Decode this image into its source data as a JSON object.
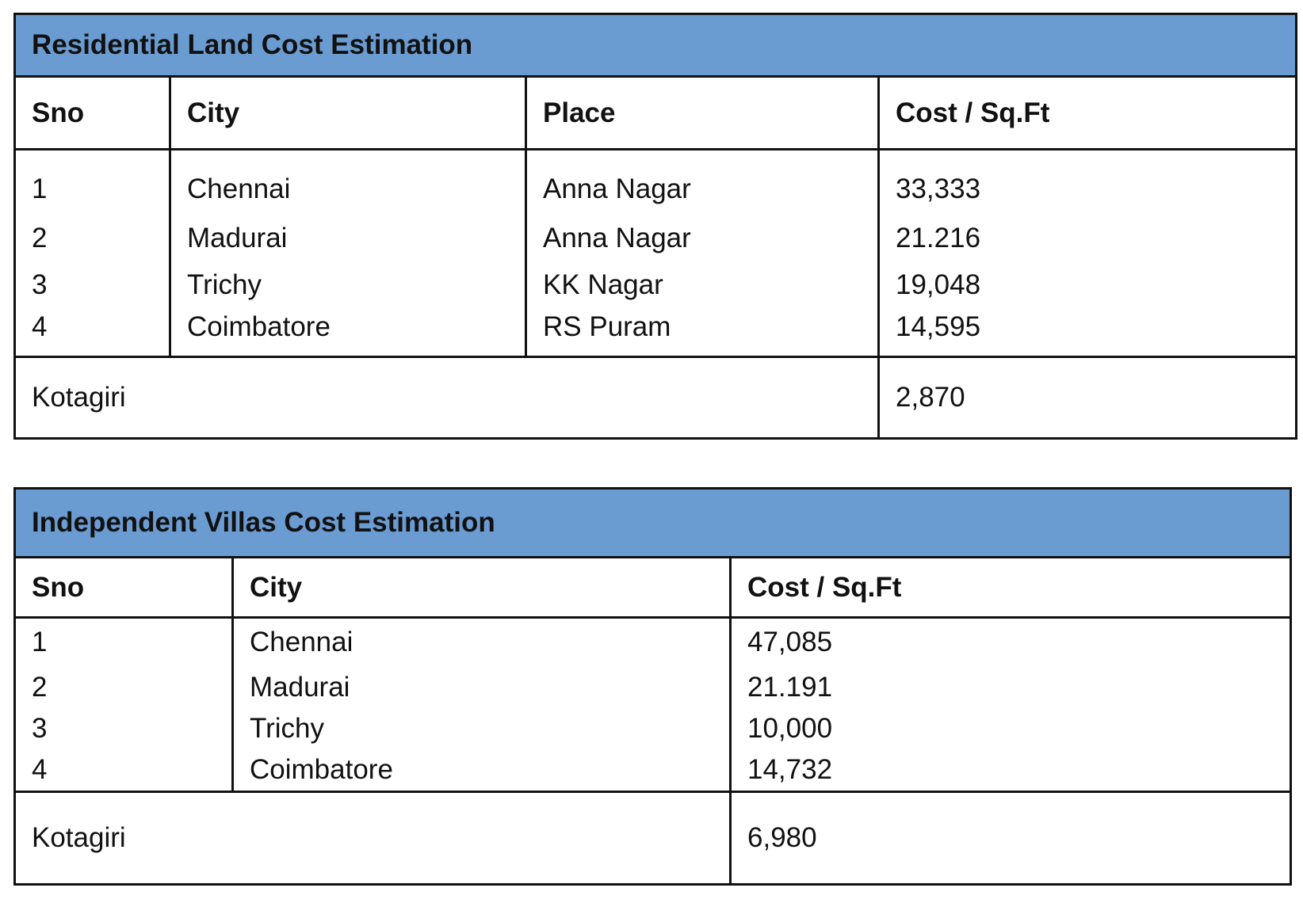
{
  "residential": {
    "title": "Residential Land Cost Estimation",
    "headers": {
      "sno": "Sno",
      "city": "City",
      "place": "Place",
      "cost": "Cost / Sq.Ft"
    },
    "rows": [
      {
        "sno": "1",
        "city": "Chennai",
        "place": "Anna Nagar",
        "cost": "33,333"
      },
      {
        "sno": "2",
        "city": "Madurai",
        "place": "Anna Nagar",
        "cost": "21.216"
      },
      {
        "sno": "3",
        "city": "Trichy",
        "place": "KK Nagar",
        "cost": "19,048"
      },
      {
        "sno": "4",
        "city": "Coimbatore",
        "place": "RS Puram",
        "cost": "14,595"
      }
    ],
    "summary": {
      "label": "Kotagiri",
      "cost": "2,870"
    }
  },
  "villas": {
    "title": "Independent Villas Cost Estimation",
    "headers": {
      "sno": "Sno",
      "city": "City",
      "cost": "Cost / Sq.Ft"
    },
    "rows": [
      {
        "sno": "1",
        "city": "Chennai",
        "cost": "47,085"
      },
      {
        "sno": "2",
        "city": "Madurai",
        "cost": "21.191"
      },
      {
        "sno": "3",
        "city": "Trichy",
        "cost": "10,000"
      },
      {
        "sno": "4",
        "city": "Coimbatore",
        "cost": "14,732"
      }
    ],
    "summary": {
      "label": "Kotagiri",
      "cost": "6,980"
    }
  }
}
